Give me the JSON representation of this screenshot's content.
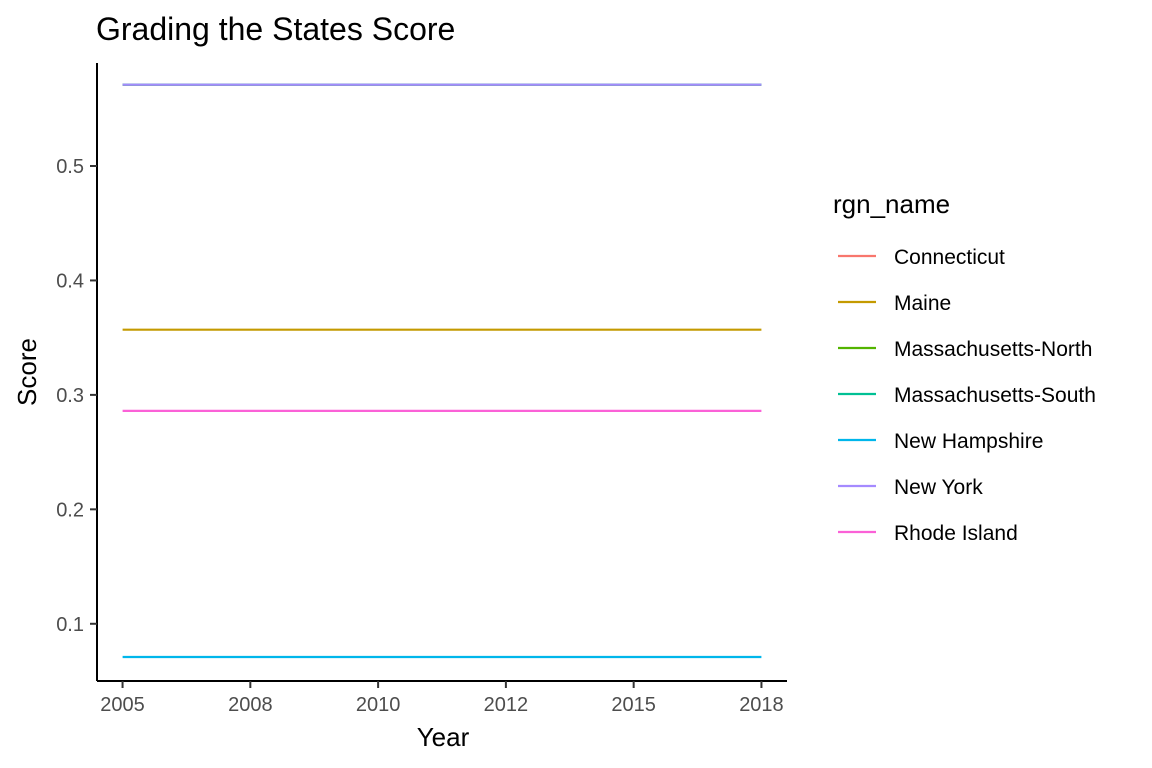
{
  "chart_data": {
    "type": "line",
    "title": "Grading the States Score",
    "xlabel": "Year",
    "ylabel": "Score",
    "xlim": [
      2004.5,
      2018.0
    ],
    "ylim": [
      0.05,
      0.59
    ],
    "x_ticks": [
      {
        "value": 2005.0,
        "label": "2005"
      },
      {
        "value": 2007.5,
        "label": "2008"
      },
      {
        "value": 2010.0,
        "label": "2010"
      },
      {
        "value": 2012.5,
        "label": "2012"
      },
      {
        "value": 2015.0,
        "label": "2015"
      },
      {
        "value": 2017.5,
        "label": "2018"
      }
    ],
    "y_ticks": [
      {
        "value": 0.1,
        "label": "0.1"
      },
      {
        "value": 0.2,
        "label": "0.2"
      },
      {
        "value": 0.3,
        "label": "0.3"
      },
      {
        "value": 0.4,
        "label": "0.4"
      },
      {
        "value": 0.5,
        "label": "0.5"
      }
    ],
    "grid": false,
    "legend": {
      "title": "rgn_name",
      "position": "right"
    },
    "x": [
      2005,
      2017.5
    ],
    "series": [
      {
        "name": "Connecticut",
        "color": "#F8766D",
        "values": [
          0.571,
          0.571
        ]
      },
      {
        "name": "Maine",
        "color": "#C49A00",
        "values": [
          0.357,
          0.357
        ]
      },
      {
        "name": "Massachusetts-North",
        "color": "#53B400",
        "values": [
          0.571,
          0.571
        ]
      },
      {
        "name": "Massachusetts-South",
        "color": "#00C094",
        "values": [
          0.571,
          0.571
        ]
      },
      {
        "name": "New Hampshire",
        "color": "#00B6EB",
        "values": [
          0.071,
          0.071
        ]
      },
      {
        "name": "New York",
        "color": "#A58AFF",
        "values": [
          0.571,
          0.571
        ]
      },
      {
        "name": "Rhode Island",
        "color": "#FB61D7",
        "values": [
          0.286,
          0.286
        ]
      }
    ]
  }
}
